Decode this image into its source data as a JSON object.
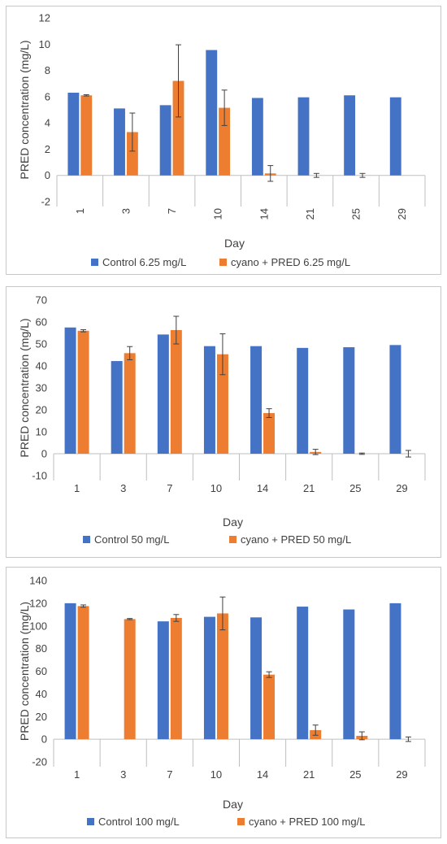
{
  "colors": {
    "control": "#4472c4",
    "treatment": "#ed7d31",
    "axis": "#bfbfbf",
    "text": "#404040",
    "errorbar": "#404040"
  },
  "chart_data": [
    {
      "type": "bar",
      "categories": [
        "1",
        "3",
        "7",
        "10",
        "14",
        "21",
        "25",
        "29"
      ],
      "xlabel": "Day",
      "ylabel": "PRED concentration (mg/L)",
      "ylim": [
        -2,
        12
      ],
      "yticks": [
        -2,
        0,
        2,
        4,
        6,
        8,
        10,
        12
      ],
      "grid": false,
      "legend_position": "bottom",
      "x_tick_rotation": "vertical",
      "series": [
        {
          "name": "Control 6.25 mg/L",
          "values": [
            6.3,
            5.1,
            5.35,
            9.55,
            5.9,
            5.95,
            6.1,
            5.95
          ]
        },
        {
          "name": "cyano + PRED 6.25 mg/L",
          "values": [
            6.1,
            3.3,
            7.2,
            5.15,
            0.15,
            0,
            0,
            null
          ],
          "errors": [
            0.05,
            1.45,
            2.75,
            1.35,
            0.6,
            0.15,
            0.15,
            null
          ]
        }
      ]
    },
    {
      "type": "bar",
      "categories": [
        "1",
        "3",
        "7",
        "10",
        "14",
        "21",
        "25",
        "29"
      ],
      "xlabel": "Day",
      "ylabel": "PRED concentration (mg/L)",
      "ylim": [
        -10,
        70
      ],
      "yticks": [
        -10,
        0,
        10,
        20,
        30,
        40,
        50,
        60,
        70
      ],
      "grid": false,
      "legend_position": "bottom",
      "x_tick_rotation": "horizontal",
      "series": [
        {
          "name": "Control 50 mg/L",
          "values": [
            57.5,
            42.2,
            54.3,
            49,
            49,
            48.2,
            48.5,
            49.5
          ]
        },
        {
          "name": "cyano + PRED 50 mg/L",
          "values": [
            56,
            45.8,
            56.3,
            45.3,
            18.5,
            0.8,
            0,
            0
          ],
          "errors": [
            0.5,
            3,
            6.3,
            9.3,
            2,
            1.2,
            0.3,
            1.5
          ]
        }
      ]
    },
    {
      "type": "bar",
      "categories": [
        "1",
        "3",
        "7",
        "10",
        "14",
        "21",
        "25",
        "29"
      ],
      "xlabel": "Day",
      "ylabel": "PRED concentration (mg/L)",
      "ylim": [
        -20,
        140
      ],
      "yticks": [
        -20,
        0,
        20,
        40,
        60,
        80,
        100,
        120,
        140
      ],
      "grid": false,
      "legend_position": "bottom",
      "x_tick_rotation": "horizontal",
      "series": [
        {
          "name": "Control 100 mg/L",
          "values": [
            120,
            null,
            104,
            108,
            107.5,
            117,
            114.5,
            120
          ]
        },
        {
          "name": "cyano + PRED 100 mg/L",
          "values": [
            117.5,
            106,
            107,
            111,
            57,
            8,
            3,
            0
          ],
          "errors": [
            1,
            0.5,
            3,
            14.5,
            2.5,
            4.5,
            3.5,
            2
          ]
        }
      ]
    }
  ]
}
